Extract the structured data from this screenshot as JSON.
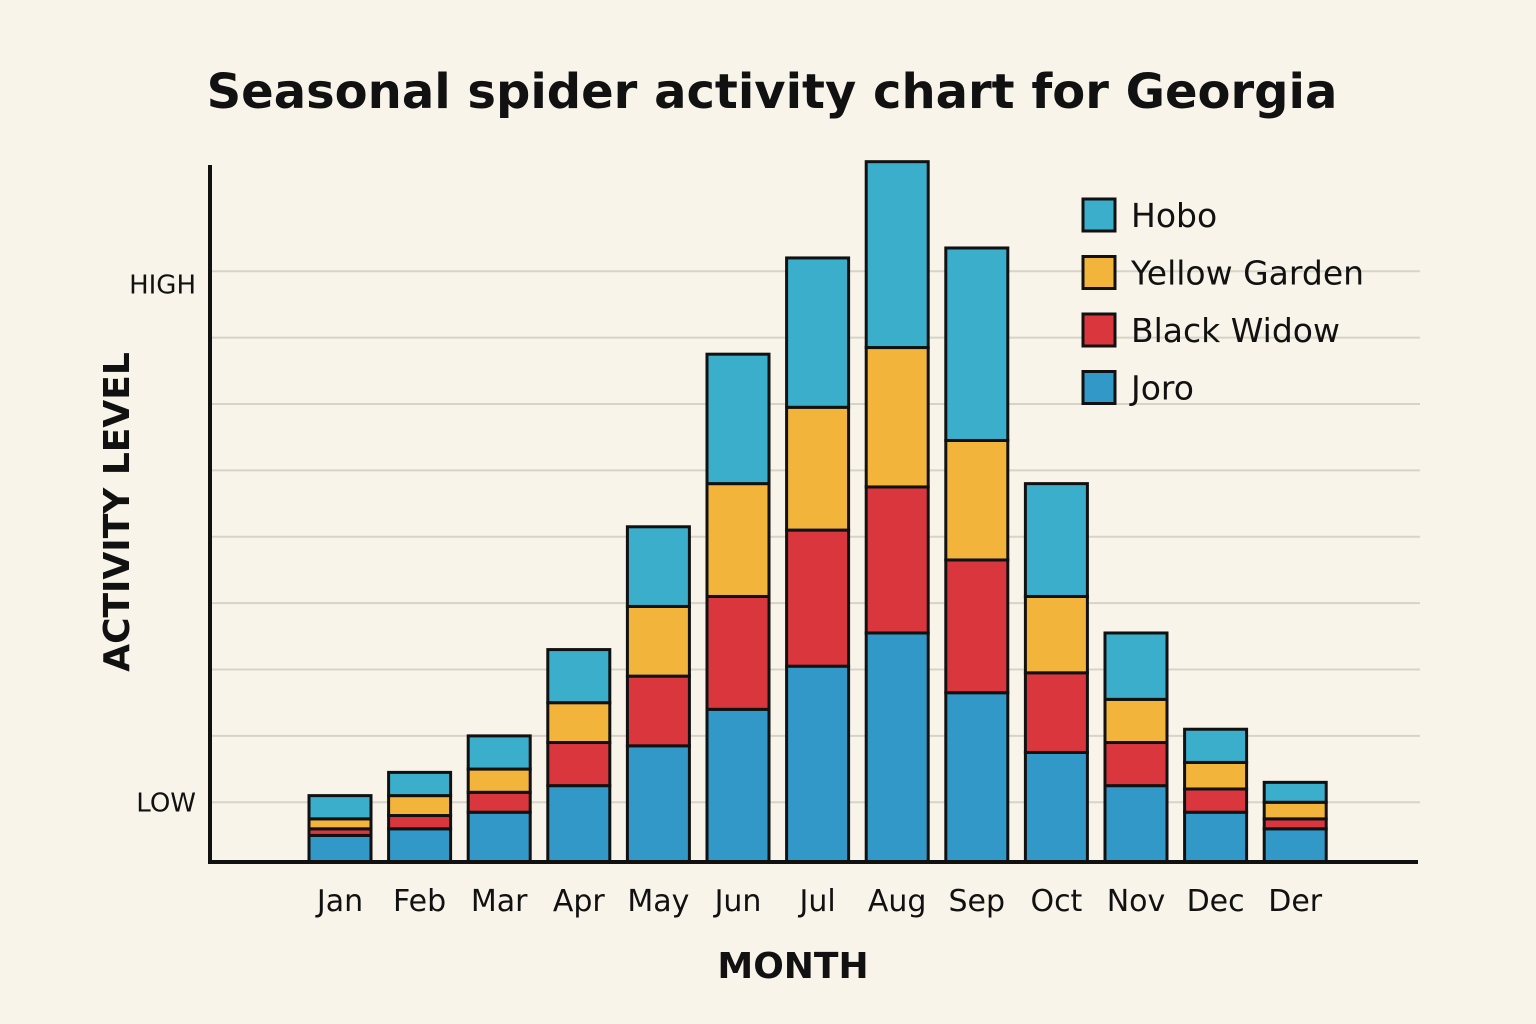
{
  "chart_data": {
    "type": "bar",
    "stacked": true,
    "title": "Seasonal spider activity chart for Georgia",
    "xlabel": "MONTH",
    "ylabel": "ACTIVITY LEVEL",
    "categories": [
      "Jan",
      "Feb",
      "Mar",
      "Apr",
      "May",
      "Jun",
      "Jul",
      "Aug",
      "Sep",
      "Oct",
      "Nov",
      "Dec",
      "Der"
    ],
    "series": [
      {
        "name": "Joro",
        "color": "#3198c8",
        "values": [
          0.4,
          0.5,
          0.75,
          1.15,
          1.75,
          2.3,
          2.95,
          3.45,
          2.55,
          1.65,
          1.15,
          0.75,
          0.5
        ]
      },
      {
        "name": "Black Widow",
        "color": "#d9363e",
        "values": [
          0.1,
          0.2,
          0.3,
          0.65,
          1.05,
          1.7,
          2.05,
          2.2,
          2.0,
          1.2,
          0.65,
          0.35,
          0.15
        ]
      },
      {
        "name": "Yellow Garden",
        "color": "#f2b43a",
        "values": [
          0.15,
          0.3,
          0.35,
          0.6,
          1.05,
          1.7,
          1.85,
          2.1,
          1.8,
          1.15,
          0.65,
          0.4,
          0.25
        ]
      },
      {
        "name": "Hobo",
        "color": "#3aaecb",
        "values": [
          0.35,
          0.35,
          0.5,
          0.8,
          1.2,
          1.95,
          2.25,
          2.8,
          2.9,
          1.7,
          1.0,
          0.5,
          0.3
        ]
      }
    ],
    "legend_order": [
      "Hobo",
      "Yellow Garden",
      "Black Widow",
      "Joro"
    ],
    "yticks": [
      {
        "label": "LOW",
        "value": 0.9
      },
      {
        "label": "HIGH",
        "value": 8.7
      }
    ],
    "ylim": [
      0,
      10.5
    ],
    "grid": true,
    "legend_position": "top-right"
  }
}
